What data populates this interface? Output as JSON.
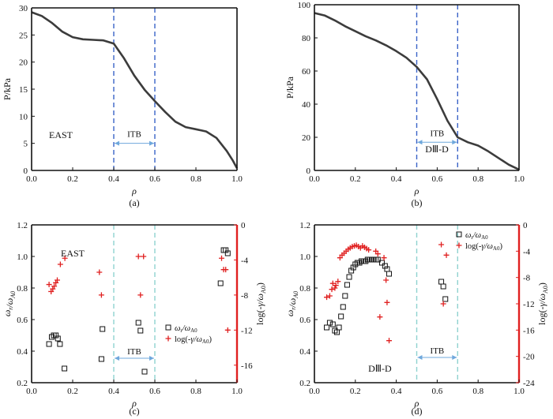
{
  "chart_data": [
    {
      "type": "line",
      "panel": "(a)",
      "annotation": "EAST",
      "xlabel": "ρ",
      "ylabel": "P/kPa",
      "xlim": [
        0,
        1
      ],
      "ylim": [
        0,
        30
      ],
      "xticks": [
        "0.0",
        "0.2",
        "0.4",
        "0.6",
        "0.8",
        "1.0"
      ],
      "yticks": [
        "0",
        "5",
        "10",
        "15",
        "20",
        "25",
        "30"
      ],
      "itb_label": "ITB",
      "itb_range": [
        0.4,
        0.6
      ],
      "series": [
        {
          "color": "#3c3c3c",
          "x": [
            0.0,
            0.05,
            0.1,
            0.15,
            0.2,
            0.25,
            0.3,
            0.35,
            0.4,
            0.45,
            0.5,
            0.55,
            0.6,
            0.65,
            0.7,
            0.75,
            0.8,
            0.85,
            0.9,
            0.95,
            0.98,
            1.0
          ],
          "y": [
            29.2,
            28.5,
            27.2,
            25.6,
            24.6,
            24.2,
            24.1,
            24.0,
            23.4,
            20.7,
            17.5,
            14.9,
            12.8,
            10.8,
            9.0,
            8.0,
            7.6,
            7.2,
            6.0,
            3.6,
            1.8,
            0.4
          ]
        }
      ]
    },
    {
      "type": "line",
      "panel": "(b)",
      "annotation": "DⅢ-D",
      "xlabel": "ρ",
      "ylabel": "P/kPa",
      "xlim": [
        0,
        1
      ],
      "ylim": [
        0,
        100
      ],
      "xticks": [
        "0.0",
        "0.2",
        "0.4",
        "0.6",
        "0.8",
        "1.0"
      ],
      "yticks": [
        "0",
        "20",
        "40",
        "60",
        "80",
        "100"
      ],
      "itb_label": "ITB",
      "itb_range": [
        0.5,
        0.7
      ],
      "series": [
        {
          "color": "#3c3c3c",
          "x": [
            0.0,
            0.05,
            0.1,
            0.15,
            0.2,
            0.25,
            0.3,
            0.35,
            0.4,
            0.45,
            0.5,
            0.55,
            0.6,
            0.65,
            0.7,
            0.75,
            0.8,
            0.85,
            0.9,
            0.95,
            1.0
          ],
          "y": [
            95.0,
            93.5,
            90.5,
            87.0,
            84.0,
            81.0,
            78.5,
            75.5,
            72.0,
            68.0,
            62.5,
            55.0,
            43.0,
            30.0,
            20.0,
            17.0,
            15.0,
            11.5,
            7.5,
            3.5,
            0.5
          ]
        }
      ]
    },
    {
      "type": "scatter",
      "panel": "(c)",
      "annotation": "EAST",
      "xlabel": "ρ",
      "ylabel": "ωr/ωA0",
      "y2label": "log(-γ/ωA0)",
      "xlim": [
        0,
        1
      ],
      "ylim": [
        0.2,
        1.2
      ],
      "y2lim": [
        -18,
        0
      ],
      "xticks": [
        "0.0",
        "0.2",
        "0.4",
        "0.6",
        "0.8",
        "1.0"
      ],
      "yticks": [
        "0.2",
        "0.4",
        "0.6",
        "0.8",
        "1.0",
        "1.2"
      ],
      "y2ticks": [
        "0",
        "-4",
        "-8",
        "-12",
        "-16"
      ],
      "y2tick_values": [
        0,
        -4,
        -8,
        -12,
        -16
      ],
      "itb_label": "ITB",
      "itb_range": [
        0.4,
        0.6
      ],
      "legend": {
        "position": "right-middle",
        "entries": [
          "ωr/ωA0",
          "log(-γ/ωA0)"
        ]
      },
      "series": [
        {
          "name": "ωr/ωA0",
          "marker": "square",
          "color": "#111111",
          "axis": "left",
          "x": [
            0.085,
            0.098,
            0.108,
            0.118,
            0.128,
            0.138,
            0.16,
            0.34,
            0.345,
            0.52,
            0.53,
            0.55,
            0.92,
            0.935,
            0.945,
            0.955
          ],
          "y": [
            0.445,
            0.49,
            0.5,
            0.5,
            0.48,
            0.445,
            0.29,
            0.35,
            0.54,
            0.58,
            0.53,
            0.27,
            0.83,
            1.04,
            1.04,
            1.02
          ]
        },
        {
          "name": "log(-γ/ωA0)",
          "marker": "plus",
          "color": "#e02020",
          "axis": "right",
          "x": [
            0.085,
            0.095,
            0.103,
            0.11,
            0.118,
            0.125,
            0.14,
            0.162,
            0.33,
            0.34,
            0.52,
            0.53,
            0.545,
            0.925,
            0.935,
            0.945,
            0.955
          ],
          "y": [
            -6.8,
            -7.6,
            -7.3,
            -7.0,
            -6.6,
            -6.3,
            -4.5,
            -3.8,
            -5.4,
            -8.0,
            -3.6,
            -8.0,
            -3.6,
            -3.8,
            -5.1,
            -5.1,
            -12.0
          ]
        }
      ]
    },
    {
      "type": "scatter",
      "panel": "(d)",
      "annotation": "DⅢ-D",
      "xlabel": "ρ",
      "ylabel": "ωr/ωA0",
      "y2label": "log(-γ/ωA0)",
      "xlim": [
        0,
        1
      ],
      "ylim": [
        0.2,
        1.2
      ],
      "y2lim": [
        -24,
        0
      ],
      "xticks": [
        "0.0",
        "0.2",
        "0.4",
        "0.6",
        "0.8",
        "1.0"
      ],
      "yticks": [
        "0.2",
        "0.4",
        "0.6",
        "0.8",
        "1.0",
        "1.2"
      ],
      "y2ticks": [
        "0",
        "-4",
        "-8",
        "-12",
        "-16",
        "-20",
        "-24"
      ],
      "y2tick_values": [
        0,
        -4,
        -8,
        -12,
        -16,
        -20,
        -24
      ],
      "itb_label": "ITB",
      "itb_range": [
        0.5,
        0.7
      ],
      "legend": {
        "position": "top-right",
        "entries": [
          "ωr/ωA0",
          "log(-γ/ωA0)"
        ]
      },
      "series": [
        {
          "name": "ωr/ωA0",
          "marker": "square",
          "color": "#111111",
          "axis": "left",
          "x": [
            0.06,
            0.075,
            0.09,
            0.1,
            0.11,
            0.12,
            0.13,
            0.14,
            0.15,
            0.16,
            0.17,
            0.18,
            0.19,
            0.2,
            0.21,
            0.22,
            0.23,
            0.24,
            0.25,
            0.26,
            0.27,
            0.28,
            0.29,
            0.3,
            0.31,
            0.33,
            0.345,
            0.355,
            0.365,
            0.62,
            0.63,
            0.64
          ],
          "y": [
            0.55,
            0.58,
            0.57,
            0.53,
            0.52,
            0.55,
            0.62,
            0.68,
            0.75,
            0.82,
            0.87,
            0.91,
            0.93,
            0.95,
            0.96,
            0.96,
            0.97,
            0.97,
            0.97,
            0.98,
            0.98,
            0.98,
            0.98,
            0.98,
            0.98,
            0.96,
            0.94,
            0.92,
            0.89,
            0.84,
            0.81,
            0.73
          ]
        },
        {
          "name": "log(-γ/ωA0)",
          "marker": "plus",
          "color": "#e02020",
          "axis": "right",
          "x": [
            0.06,
            0.075,
            0.085,
            0.09,
            0.1,
            0.105,
            0.115,
            0.125,
            0.135,
            0.145,
            0.155,
            0.165,
            0.175,
            0.185,
            0.195,
            0.205,
            0.215,
            0.225,
            0.235,
            0.245,
            0.255,
            0.265,
            0.3,
            0.31,
            0.32,
            0.34,
            0.35,
            0.355,
            0.365,
            0.62,
            0.63,
            0.645
          ],
          "y": [
            -11.0,
            -10.8,
            -9.8,
            -8.9,
            -9.6,
            -9.2,
            -8.6,
            -5.0,
            -4.6,
            -4.3,
            -4.0,
            -3.7,
            -3.5,
            -3.3,
            -3.2,
            -3.1,
            -3.3,
            -3.5,
            -3.2,
            -3.4,
            -3.6,
            -3.8,
            -4.0,
            -4.4,
            -14.0,
            -5.0,
            -8.4,
            -11.8,
            -17.6,
            -3.0,
            -12.0,
            -4.6
          ]
        }
      ]
    }
  ]
}
